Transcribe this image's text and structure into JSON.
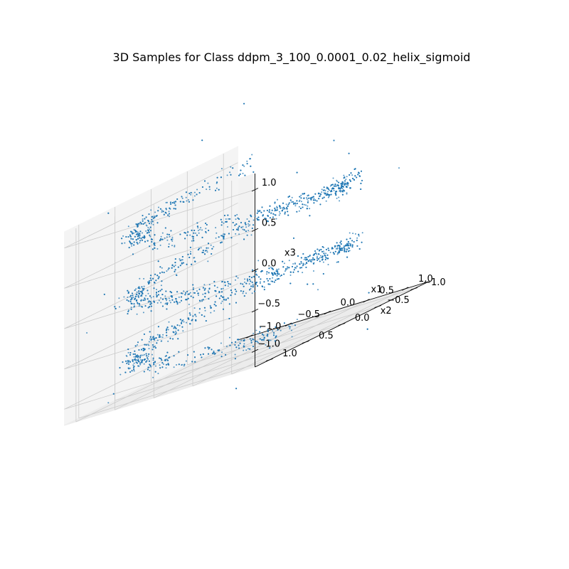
{
  "chart_data": {
    "type": "scatter",
    "projection": "3d",
    "title": "3D Samples for Class ddpm_3_100_0.0001_0.02_helix_sigmoid",
    "xlabel": "x1",
    "ylabel": "x2",
    "zlabel": "x3",
    "xlim": [
      -1.15,
      1.3
    ],
    "ylim": [
      -1.2,
      1.2
    ],
    "zlim": [
      -1.2,
      1.2
    ],
    "xticks": [
      -1.0,
      -0.5,
      0.0,
      0.5,
      1.0
    ],
    "xtick_labels": [
      "−1.0",
      "−0.5",
      "0.0",
      "0.5",
      "1.0"
    ],
    "yticks": [
      -1.0,
      -0.5,
      0.0,
      0.5,
      1.0
    ],
    "ytick_labels": [
      "−1.0",
      "−0.5",
      "0.0",
      "0.5",
      "1.0"
    ],
    "zticks": [
      -1.0,
      -0.5,
      0.0,
      0.5,
      1.0
    ],
    "ztick_labels": [
      "−1.0",
      "−0.5",
      "0.0",
      "0.5",
      "1.0"
    ],
    "grid": true,
    "marker_color": "#1f77b4",
    "series": [
      {
        "shape": "helix",
        "approx_points": 4000,
        "radius": 1.0,
        "turns": 2.6,
        "z_range": [
          -1.0,
          1.0
        ],
        "noise_std": 0.05
      }
    ]
  }
}
